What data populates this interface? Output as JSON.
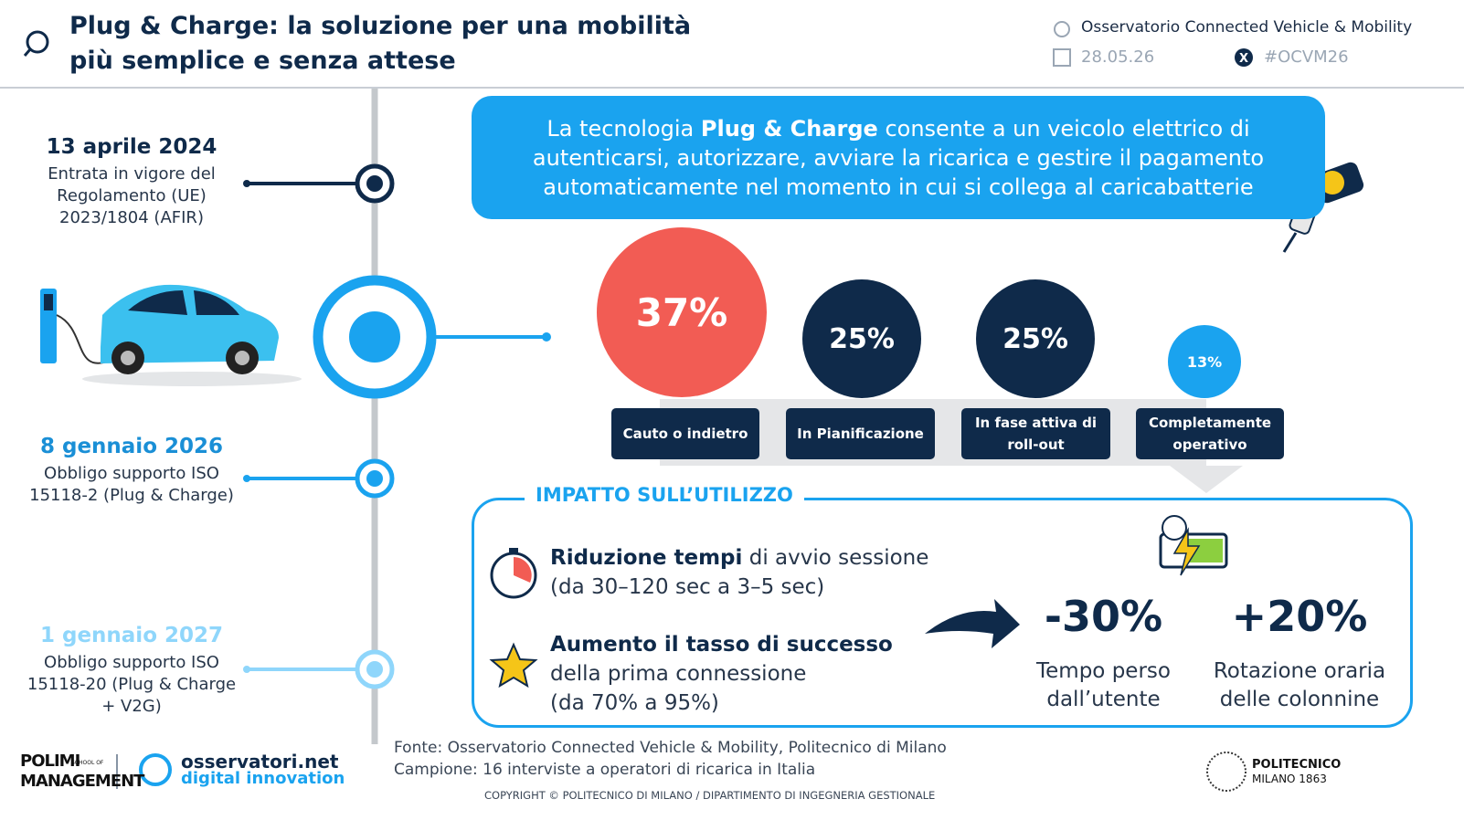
{
  "header": {
    "title": [
      "Plug & Charge: la soluzione per una mobilità",
      "più semplice e senza attese"
    ],
    "organization": "Osservatorio Connected  Vehicle & Mobility",
    "date": "28.05.26",
    "hashtag": "#OCVM26"
  },
  "timeline": [
    {
      "date": "13 aprile 2024",
      "text": "Entrata in vigore del Regolamento (UE) 2023/1804 (AFIR)"
    },
    {
      "date": "8 gennaio 2026",
      "text": "Obbligo supporto ISO 15118-2 (Plug & Charge)"
    },
    {
      "date": "1 gennaio 2027",
      "text": "Obbligo supporto ISO 15118-20 (Plug & Charge + V2G)"
    }
  ],
  "intro": {
    "before": "La tecnologia ",
    "bold": "Plug & Charge",
    "after": " consente a un veicolo elettrico di autenticarsi, autorizzare, avviare la ricarica e gestire il pagamento automaticamente nel momento in cui si collega al caricabatterie"
  },
  "stages": [
    {
      "value": "37%",
      "label": "Cauto o indietro"
    },
    {
      "value": "25%",
      "label": "In Pianificazione"
    },
    {
      "value": "25%",
      "label": "In fase attiva di roll-out"
    },
    {
      "value": "13%",
      "label": "Completamente operativo"
    }
  ],
  "impact": {
    "title": "IMPATTO SULL’UTILIZZO",
    "items": [
      {
        "bold": "Riduzione tempi",
        "rest": " di avvio sessione",
        "detail": "(da 30–120 sec a 3–5 sec)"
      },
      {
        "bold": "Aumento il tasso di successo",
        "rest": "della prima connessione",
        "detail": "(da 70% a 95%)"
      }
    ],
    "stats": [
      {
        "value": "-30%",
        "label": "Tempo perso dall’utente"
      },
      {
        "value": "+20%",
        "label": "Rotazione oraria delle colonnine"
      }
    ]
  },
  "footer": {
    "source": "Fonte: Osservatorio Connected Vehicle & Mobility, Politecnico di Milano",
    "sample": "Campione: 16 interviste a operatori di ricarica in Italia",
    "copyright": "COPYRIGHT © POLITECNICO DI MILANO / DIPARTIMENTO DI INGEGNERIA GESTIONALE",
    "logos": {
      "polimi": "POLIMI",
      "school": "SCHOOL OF",
      "management": "MANAGEMENT",
      "osservatori": "osservatori.net",
      "digital": "digital innovation",
      "politecnico": "POLITECNICO",
      "milano": "MILANO 1863"
    }
  }
}
